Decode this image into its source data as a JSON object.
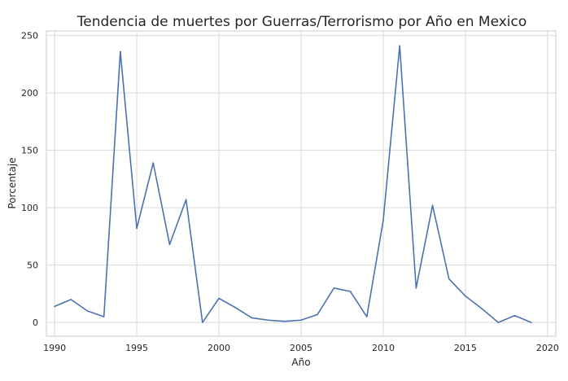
{
  "chart_data": {
    "type": "line",
    "title": "Tendencia de muertes por Guerras/Terrorismo por Año en Mexico",
    "xlabel": "Año",
    "ylabel": "Porcentaje",
    "xlim": [
      1989.5,
      2020.5
    ],
    "ylim": [
      -12,
      254
    ],
    "xticks": [
      1990,
      1995,
      2000,
      2005,
      2010,
      2015,
      2020
    ],
    "yticks": [
      0,
      50,
      100,
      150,
      200,
      250
    ],
    "grid": true,
    "series": [
      {
        "color": "#4c72b0",
        "x": [
          1990,
          1991,
          1992,
          1993,
          1994,
          1995,
          1996,
          1997,
          1998,
          1999,
          2000,
          2001,
          2002,
          2003,
          2004,
          2005,
          2006,
          2007,
          2008,
          2009,
          2010,
          2011,
          2012,
          2013,
          2014,
          2015,
          2016,
          2017,
          2018,
          2019
        ],
        "y": [
          14,
          20,
          10,
          5,
          236,
          82,
          139,
          68,
          107,
          0,
          21,
          13,
          4,
          2,
          1,
          2,
          7,
          30,
          27,
          5,
          89,
          241,
          30,
          102,
          38,
          23,
          12,
          0,
          6,
          0
        ]
      }
    ]
  }
}
